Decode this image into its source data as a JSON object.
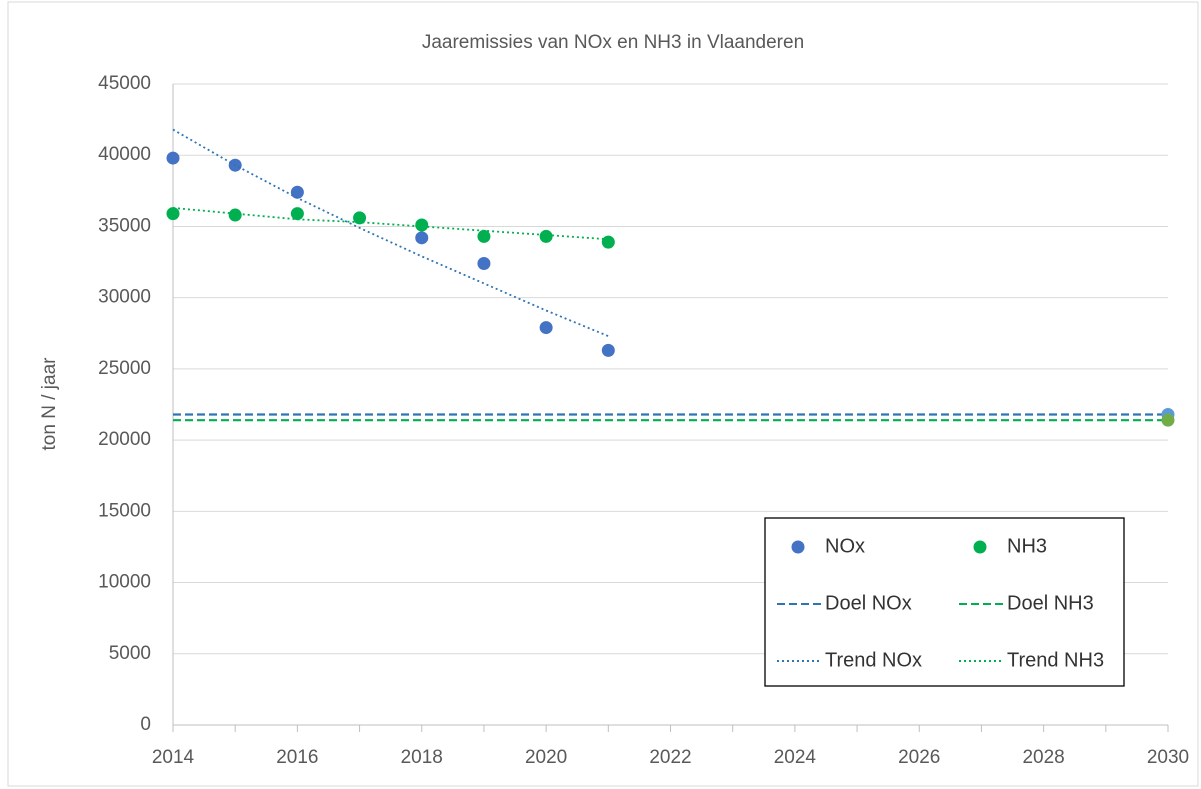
{
  "chart_data": {
    "type": "scatter",
    "title": "Jaaremissies van NOx en NH3 in Vlaanderen",
    "y_label": "ton N / jaar",
    "xlim": [
      2014,
      2030
    ],
    "xticks": [
      2014,
      2016,
      2018,
      2020,
      2022,
      2024,
      2026,
      2028,
      2030
    ],
    "xticks_minor": [
      2015,
      2017,
      2019,
      2021,
      2023,
      2025,
      2027,
      2029
    ],
    "ylim": [
      0,
      45000
    ],
    "yticks": [
      0,
      5000,
      10000,
      15000,
      20000,
      25000,
      30000,
      35000,
      40000,
      45000
    ],
    "grid": true,
    "legend": "lower right",
    "series": [
      {
        "name": "NOx",
        "kind": "markers",
        "color": "#4472c4",
        "x": [
          2014,
          2015,
          2016,
          2018,
          2019,
          2020,
          2021
        ],
        "values": [
          39800,
          39300,
          37400,
          34200,
          32400,
          27900,
          26300
        ]
      },
      {
        "name": "NH3",
        "kind": "markers",
        "color": "#00b050",
        "x": [
          2014,
          2015,
          2016,
          2017,
          2018,
          2019,
          2020,
          2021
        ],
        "values": [
          35900,
          35800,
          35900,
          35600,
          35100,
          34300,
          34300,
          33900
        ]
      },
      {
        "name": "Doel NOx",
        "kind": "dashed",
        "color": "#2e75b6",
        "end_marker": "#5b9bd5",
        "x": [
          2014,
          2030
        ],
        "values": [
          21800,
          21800
        ]
      },
      {
        "name": "Doel NH3",
        "kind": "dashed",
        "color": "#00b050",
        "end_marker": "#70ad47",
        "x": [
          2014,
          2030
        ],
        "values": [
          21400,
          21400
        ]
      },
      {
        "name": "Trend NOx",
        "kind": "dotted",
        "color": "#2e75b6",
        "x": [
          2014,
          2015,
          2016,
          2017,
          2018,
          2019,
          2020,
          2021
        ],
        "values": [
          41800,
          39300,
          37000,
          34900,
          32900,
          31000,
          29100,
          27300
        ]
      },
      {
        "name": "Trend NH3",
        "kind": "dotted",
        "color": "#00b050",
        "x": [
          2014,
          2015,
          2016,
          2017,
          2018,
          2019,
          2020,
          2021
        ],
        "values": [
          36300,
          35900,
          35500,
          35300,
          35000,
          34700,
          34400,
          34100
        ]
      }
    ]
  }
}
